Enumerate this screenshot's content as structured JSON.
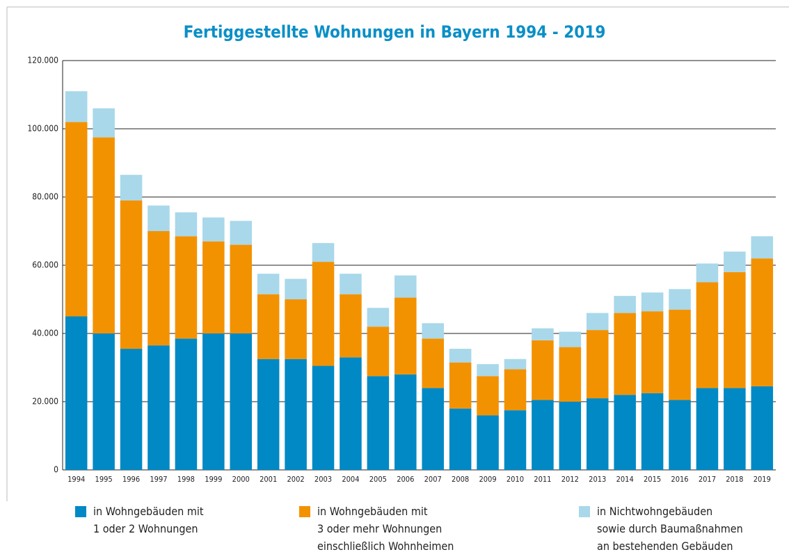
{
  "chart_data": {
    "type": "stacked_bar",
    "title": "Fertiggestellte Wohnungen in Bayern 1994 - 2019",
    "categories": [
      "1994",
      "1995",
      "1996",
      "1997",
      "1998",
      "1999",
      "2000",
      "2001",
      "2002",
      "2003",
      "2004",
      "2005",
      "2006",
      "2007",
      "2008",
      "2009",
      "2010",
      "2011",
      "2012",
      "2013",
      "2014",
      "2015",
      "2016",
      "2017",
      "2018",
      "2019"
    ],
    "series": [
      {
        "name": "in Wohngebäuden mit\n1 oder 2 Wohnungen",
        "color": "#0089c4",
        "values": [
          45000,
          40000,
          35500,
          36500,
          38500,
          40000,
          40000,
          32500,
          32500,
          30500,
          33000,
          27500,
          28000,
          24000,
          18000,
          16000,
          17500,
          20500,
          20000,
          21000,
          22000,
          22500,
          20500,
          24000,
          24000,
          24500
        ]
      },
      {
        "name": "in Wohngebäuden mit\n3 oder mehr Wohnungen\neinschließlich Wohnheimen",
        "color": "#f39200",
        "values": [
          57000,
          57500,
          43500,
          33500,
          30000,
          27000,
          26000,
          19000,
          17500,
          30500,
          18500,
          14500,
          22500,
          14500,
          13500,
          11500,
          12000,
          17500,
          16000,
          20000,
          24000,
          24000,
          26500,
          31000,
          34000,
          37500
        ]
      },
      {
        "name": "in Nichtwohngebäuden\nsowie durch Baumaßnahmen\nan bestehenden Gebäuden",
        "color": "#a8d8ea",
        "values": [
          9000,
          8500,
          7500,
          7500,
          7000,
          7000,
          7000,
          6000,
          6000,
          5500,
          6000,
          5500,
          6500,
          4500,
          4000,
          3500,
          3000,
          3500,
          4500,
          5000,
          5000,
          5500,
          6000,
          5500,
          6000,
          6500
        ]
      }
    ],
    "ylim": [
      0,
      120000
    ],
    "yticks": [
      0,
      {
        "value": 20000,
        "label": "20.000"
      },
      {
        "value": 40000,
        "label": "40.000"
      },
      {
        "value": 60000,
        "label": "60.000"
      },
      {
        "value": 80000,
        "label": "80.000"
      },
      {
        "value": 100000,
        "label": "100.000"
      },
      {
        "value": 120000,
        "label": "120.000"
      }
    ],
    "grid": true
  }
}
